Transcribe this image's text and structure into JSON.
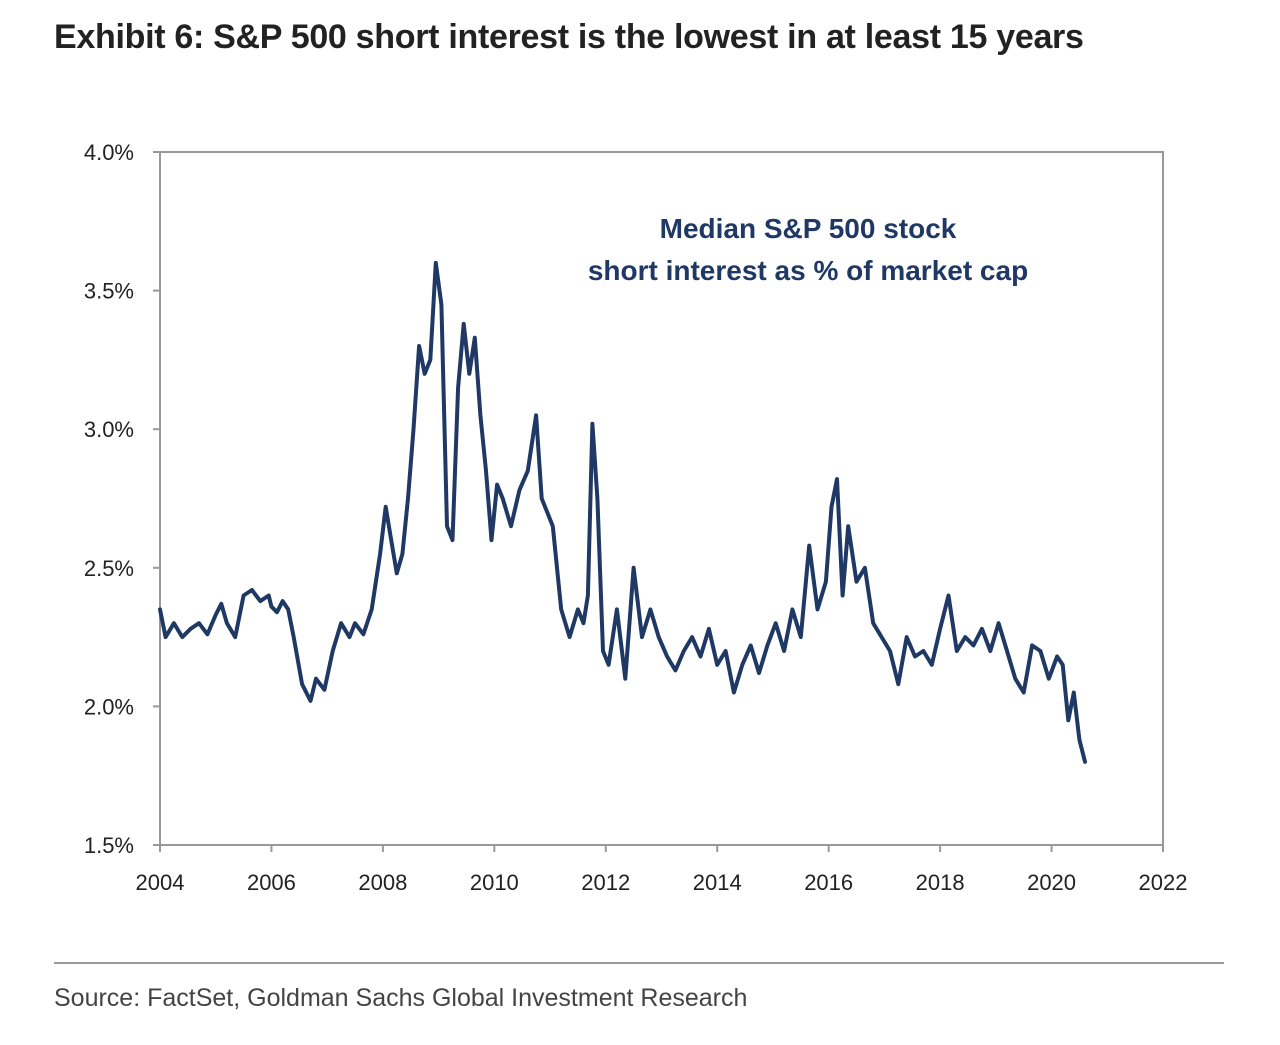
{
  "title": "Exhibit 6: S&P 500 short interest is the lowest in at least 15 years",
  "source": "Source: FactSet, Goldman Sachs Global Investment Research",
  "colors": {
    "series": "#1f3864",
    "axis": "#999999",
    "text": "#222222"
  },
  "chart_data": {
    "type": "line",
    "annotation": [
      "Median S&P 500 stock",
      "short interest as % of market cap"
    ],
    "xlim": [
      2004,
      2022
    ],
    "ylim": [
      1.5,
      4.0
    ],
    "x_ticks": [
      2004,
      2006,
      2008,
      2010,
      2012,
      2014,
      2016,
      2018,
      2020,
      2022
    ],
    "x_tick_labels": [
      "2004",
      "2006",
      "2008",
      "2010",
      "2012",
      "2014",
      "2016",
      "2018",
      "2020",
      "2022"
    ],
    "y_ticks": [
      1.5,
      2.0,
      2.5,
      3.0,
      3.5,
      4.0
    ],
    "y_tick_labels": [
      "1.5%",
      "2.0%",
      "2.5%",
      "3.0%",
      "3.5%",
      "4.0%"
    ],
    "grid": false,
    "legend": "none",
    "series": [
      {
        "x": [
          2004.0,
          2004.1,
          2004.25,
          2004.4,
          2004.55,
          2004.7,
          2004.85,
          2005.0,
          2005.1,
          2005.2,
          2005.35,
          2005.5,
          2005.65,
          2005.8,
          2005.95,
          2006.0,
          2006.1,
          2006.2,
          2006.3,
          2006.4,
          2006.55,
          2006.7,
          2006.8,
          2006.95,
          2007.1,
          2007.25,
          2007.4,
          2007.5,
          2007.65,
          2007.8,
          2007.95,
          2008.05,
          2008.15,
          2008.25,
          2008.35,
          2008.45,
          2008.55,
          2008.65,
          2008.75,
          2008.85,
          2008.95,
          2009.05,
          2009.15,
          2009.25,
          2009.35,
          2009.45,
          2009.55,
          2009.65,
          2009.75,
          2009.85,
          2009.95,
          2010.05,
          2010.15,
          2010.3,
          2010.45,
          2010.6,
          2010.75,
          2010.85,
          2010.95,
          2011.05,
          2011.2,
          2011.35,
          2011.5,
          2011.6,
          2011.68,
          2011.76,
          2011.85,
          2011.95,
          2012.05,
          2012.2,
          2012.35,
          2012.5,
          2012.65,
          2012.8,
          2012.95,
          2013.1,
          2013.25,
          2013.4,
          2013.55,
          2013.7,
          2013.85,
          2014.0,
          2014.15,
          2014.3,
          2014.45,
          2014.6,
          2014.75,
          2014.9,
          2015.05,
          2015.2,
          2015.35,
          2015.5,
          2015.65,
          2015.8,
          2015.95,
          2016.05,
          2016.15,
          2016.25,
          2016.35,
          2016.5,
          2016.65,
          2016.8,
          2016.95,
          2017.1,
          2017.25,
          2017.4,
          2017.55,
          2017.7,
          2017.85,
          2018.0,
          2018.15,
          2018.3,
          2018.45,
          2018.6,
          2018.75,
          2018.9,
          2019.05,
          2019.2,
          2019.35,
          2019.5,
          2019.65,
          2019.8,
          2019.95,
          2020.1,
          2020.2,
          2020.3,
          2020.4,
          2020.5,
          2020.6
        ],
        "values": [
          2.35,
          2.25,
          2.3,
          2.25,
          2.28,
          2.3,
          2.26,
          2.33,
          2.37,
          2.3,
          2.25,
          2.4,
          2.42,
          2.38,
          2.4,
          2.36,
          2.34,
          2.38,
          2.35,
          2.25,
          2.08,
          2.02,
          2.1,
          2.06,
          2.2,
          2.3,
          2.25,
          2.3,
          2.26,
          2.35,
          2.55,
          2.72,
          2.6,
          2.48,
          2.55,
          2.75,
          3.0,
          3.3,
          3.2,
          3.25,
          3.6,
          3.45,
          2.65,
          2.6,
          3.15,
          3.38,
          3.2,
          3.33,
          3.05,
          2.85,
          2.6,
          2.8,
          2.75,
          2.65,
          2.78,
          2.85,
          3.05,
          2.75,
          2.7,
          2.65,
          2.35,
          2.25,
          2.35,
          2.3,
          2.4,
          3.02,
          2.75,
          2.2,
          2.15,
          2.35,
          2.1,
          2.5,
          2.25,
          2.35,
          2.25,
          2.18,
          2.13,
          2.2,
          2.25,
          2.18,
          2.28,
          2.15,
          2.2,
          2.05,
          2.15,
          2.22,
          2.12,
          2.22,
          2.3,
          2.2,
          2.35,
          2.25,
          2.58,
          2.35,
          2.45,
          2.72,
          2.82,
          2.4,
          2.65,
          2.45,
          2.5,
          2.3,
          2.25,
          2.2,
          2.08,
          2.25,
          2.18,
          2.2,
          2.15,
          2.28,
          2.4,
          2.2,
          2.25,
          2.22,
          2.28,
          2.2,
          2.3,
          2.2,
          2.1,
          2.05,
          2.22,
          2.2,
          2.1,
          2.18,
          2.15,
          1.95,
          2.05,
          1.88,
          1.8
        ]
      }
    ]
  }
}
